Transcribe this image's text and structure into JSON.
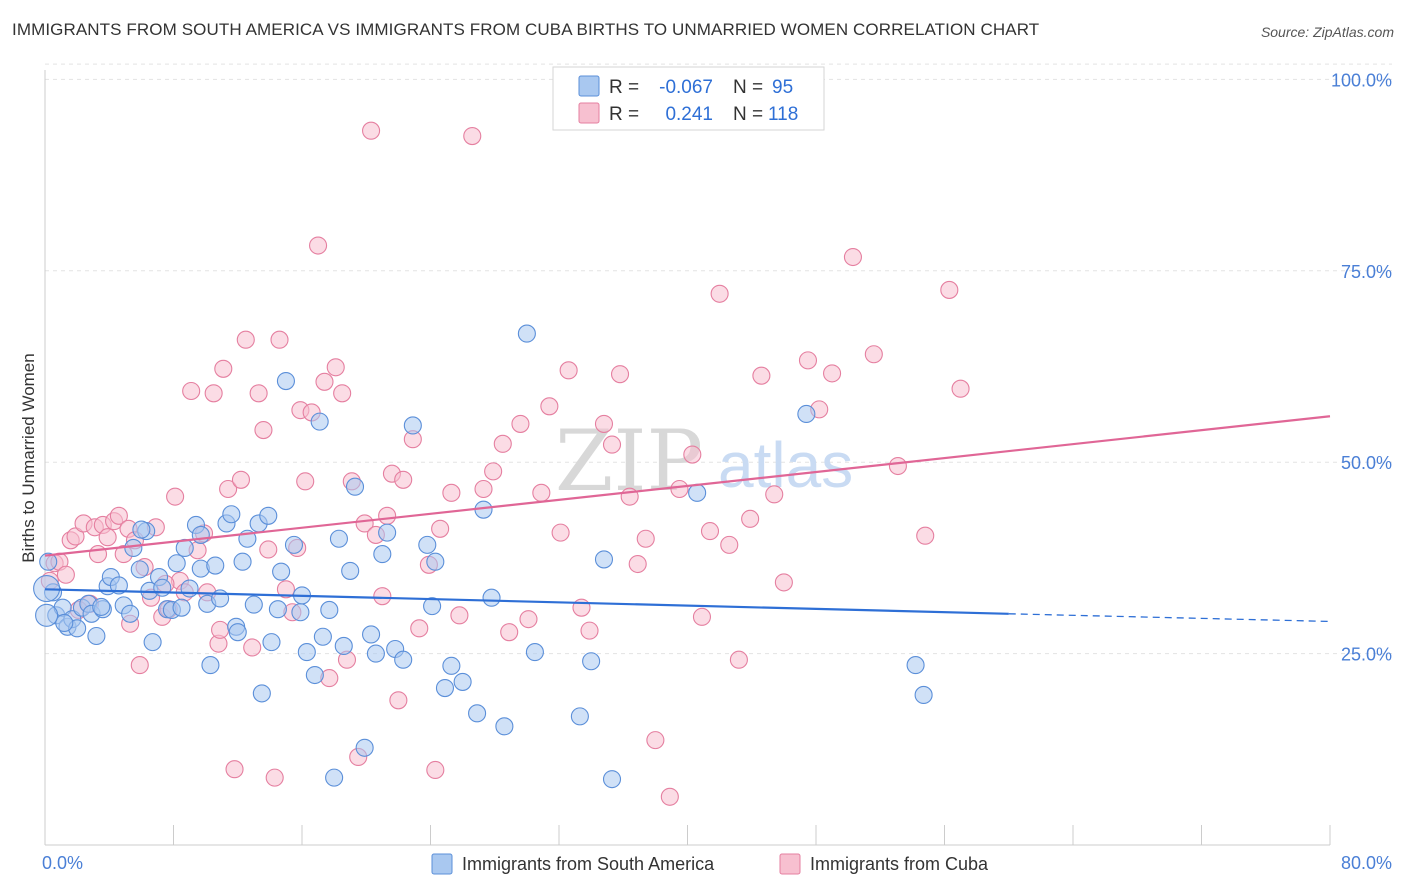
{
  "title": "IMMIGRANTS FROM SOUTH AMERICA VS IMMIGRANTS FROM CUBA BIRTHS TO UNMARRIED WOMEN CORRELATION CHART",
  "source": "Source: ZipAtlas.com",
  "watermark": {
    "part1": "ZIP",
    "part2": "atlas"
  },
  "legend": {
    "rows": [
      {
        "r_label": "R =",
        "r_value": "-0.067",
        "n_label": "N =",
        "n_value": "95",
        "color": "#a9c8f0",
        "stroke": "#5b8fd9"
      },
      {
        "r_label": "R =",
        "r_value": "0.241",
        "n_label": "N =",
        "n_value": "118",
        "color": "#f7c0d0",
        "stroke": "#e57fa0"
      }
    ]
  },
  "bottom_legend": [
    "Immigrants from South America",
    "Immigrants from Cuba"
  ],
  "chart_data": {
    "type": "scatter",
    "title": "IMMIGRANTS FROM SOUTH AMERICA VS IMMIGRANTS FROM CUBA BIRTHS TO UNMARRIED WOMEN CORRELATION CHART",
    "xlabel": "",
    "ylabel": "Births to Unmarried Women",
    "xlim": [
      0,
      80
    ],
    "ylim": [
      0,
      102
    ],
    "x_tick_labels": [
      "0.0%",
      "80.0%"
    ],
    "y_ticks": [
      25,
      50,
      75,
      100
    ],
    "y_tick_labels": [
      "25.0%",
      "50.0%",
      "75.0%",
      "100.0%"
    ],
    "grid": true,
    "series": [
      {
        "name": "Immigrants from South America",
        "color": "#5b8fd9",
        "fill": "#a9c8f0",
        "trend": {
          "x0": 0,
          "y0": 33.4,
          "x1": 60,
          "y1": 30.2,
          "dash_to_x": 80,
          "dash_to_y": 29.2,
          "line": "#2e6fd6"
        },
        "points": [
          [
            0.2,
            37
          ],
          [
            0.5,
            33
          ],
          [
            0.7,
            30
          ],
          [
            1.1,
            31
          ],
          [
            1.4,
            28.5
          ],
          [
            1.7,
            29.5
          ],
          [
            2.0,
            28.3
          ],
          [
            2.3,
            31
          ],
          [
            2.7,
            31.5
          ],
          [
            2.9,
            30.2
          ],
          [
            3.2,
            27.3
          ],
          [
            3.6,
            30.8
          ],
          [
            3.9,
            33.8
          ],
          [
            4.1,
            35
          ],
          [
            4.6,
            33.9
          ],
          [
            4.9,
            31.3
          ],
          [
            5.3,
            30.2
          ],
          [
            5.5,
            38.8
          ],
          [
            5.9,
            36
          ],
          [
            6.3,
            41
          ],
          [
            6.5,
            33.2
          ],
          [
            6.7,
            26.5
          ],
          [
            7.1,
            35
          ],
          [
            7.3,
            33.6
          ],
          [
            7.6,
            30.8
          ],
          [
            7.9,
            30.7
          ],
          [
            8.2,
            36.8
          ],
          [
            8.5,
            31
          ],
          [
            8.7,
            38.8
          ],
          [
            9.0,
            33.5
          ],
          [
            9.4,
            41.8
          ],
          [
            9.7,
            36.1
          ],
          [
            10.1,
            31.5
          ],
          [
            10.3,
            23.5
          ],
          [
            10.6,
            36.5
          ],
          [
            10.9,
            32.2
          ],
          [
            11.3,
            42
          ],
          [
            11.6,
            43.2
          ],
          [
            11.9,
            28.5
          ],
          [
            12.3,
            37
          ],
          [
            12.6,
            40
          ],
          [
            13.0,
            31.4
          ],
          [
            13.3,
            42
          ],
          [
            13.5,
            19.8
          ],
          [
            13.9,
            43
          ],
          [
            14.1,
            26.5
          ],
          [
            14.5,
            30.8
          ],
          [
            14.7,
            35.7
          ],
          [
            15.0,
            60.6
          ],
          [
            15.5,
            39.2
          ],
          [
            15.9,
            30.4
          ],
          [
            16.3,
            25.2
          ],
          [
            16.8,
            22.2
          ],
          [
            17.1,
            55.3
          ],
          [
            17.3,
            27.2
          ],
          [
            17.7,
            30.7
          ],
          [
            18.0,
            8.8
          ],
          [
            18.3,
            40
          ],
          [
            18.6,
            26
          ],
          [
            19.0,
            35.8
          ],
          [
            19.3,
            46.8
          ],
          [
            19.9,
            12.7
          ],
          [
            20.3,
            27.5
          ],
          [
            20.6,
            25
          ],
          [
            21.0,
            38
          ],
          [
            21.3,
            40.8
          ],
          [
            21.8,
            25.6
          ],
          [
            22.3,
            24.2
          ],
          [
            22.9,
            54.8
          ],
          [
            23.8,
            39.2
          ],
          [
            24.1,
            31.2
          ],
          [
            24.3,
            37
          ],
          [
            24.9,
            20.5
          ],
          [
            25.3,
            23.4
          ],
          [
            26.0,
            21.3
          ],
          [
            26.9,
            17.2
          ],
          [
            27.3,
            43.8
          ],
          [
            27.8,
            32.3
          ],
          [
            28.6,
            15.5
          ],
          [
            30.0,
            66.8
          ],
          [
            30.5,
            25.2
          ],
          [
            33.3,
            16.8
          ],
          [
            34.0,
            24
          ],
          [
            34.8,
            37.3
          ],
          [
            35.3,
            8.6
          ],
          [
            40.6,
            46
          ],
          [
            47.4,
            56.3
          ],
          [
            54.2,
            23.5
          ],
          [
            54.7,
            19.6
          ],
          [
            9.7,
            40.5
          ],
          [
            6.0,
            41.2
          ],
          [
            3.5,
            31.1
          ],
          [
            12.0,
            27.8
          ],
          [
            16.0,
            32.6
          ],
          [
            1.2,
            29.0
          ]
        ]
      },
      {
        "name": "Immigrants from Cuba",
        "color": "#e57fa0",
        "fill": "#f7c0d0",
        "trend": {
          "x0": 0,
          "y0": 37.8,
          "x1": 80,
          "y1": 56.0,
          "line": "#e06696"
        },
        "points": [
          [
            0.3,
            34.5
          ],
          [
            0.6,
            36.8
          ],
          [
            0.9,
            37
          ],
          [
            1.3,
            35.3
          ],
          [
            1.6,
            39.8
          ],
          [
            1.9,
            40.3
          ],
          [
            2.4,
            42
          ],
          [
            2.8,
            31.5
          ],
          [
            3.1,
            41.5
          ],
          [
            3.3,
            38
          ],
          [
            3.6,
            41.8
          ],
          [
            3.9,
            40.2
          ],
          [
            4.3,
            42.3
          ],
          [
            4.6,
            43
          ],
          [
            4.9,
            38
          ],
          [
            5.2,
            41.3
          ],
          [
            5.6,
            39.8
          ],
          [
            5.9,
            23.5
          ],
          [
            6.2,
            36.3
          ],
          [
            6.6,
            32.3
          ],
          [
            6.9,
            41.5
          ],
          [
            7.3,
            29.8
          ],
          [
            7.7,
            30.8
          ],
          [
            8.1,
            45.5
          ],
          [
            8.4,
            34.5
          ],
          [
            8.7,
            33
          ],
          [
            9.1,
            59.3
          ],
          [
            9.5,
            38.5
          ],
          [
            9.9,
            40.7
          ],
          [
            10.1,
            33
          ],
          [
            10.5,
            59
          ],
          [
            10.8,
            26.3
          ],
          [
            11.1,
            62.2
          ],
          [
            11.4,
            46.5
          ],
          [
            11.8,
            9.9
          ],
          [
            12.2,
            47.7
          ],
          [
            12.5,
            66
          ],
          [
            12.9,
            25.8
          ],
          [
            13.3,
            59
          ],
          [
            13.6,
            54.2
          ],
          [
            13.9,
            38.6
          ],
          [
            14.3,
            8.8
          ],
          [
            14.6,
            66
          ],
          [
            15.0,
            33.4
          ],
          [
            15.4,
            30.4
          ],
          [
            15.9,
            56.8
          ],
          [
            16.2,
            47.5
          ],
          [
            16.6,
            56.5
          ],
          [
            17.0,
            78.3
          ],
          [
            17.4,
            60.5
          ],
          [
            17.7,
            21.8
          ],
          [
            18.1,
            62.4
          ],
          [
            18.5,
            59
          ],
          [
            18.8,
            24.2
          ],
          [
            19.1,
            47.5
          ],
          [
            19.5,
            11.5
          ],
          [
            19.9,
            42
          ],
          [
            20.3,
            93.3
          ],
          [
            20.6,
            40.5
          ],
          [
            21.0,
            32.5
          ],
          [
            21.3,
            43
          ],
          [
            21.6,
            48.5
          ],
          [
            22.0,
            18.9
          ],
          [
            22.3,
            47.7
          ],
          [
            22.9,
            53
          ],
          [
            23.3,
            28.3
          ],
          [
            23.9,
            36.6
          ],
          [
            24.3,
            9.8
          ],
          [
            24.6,
            41.3
          ],
          [
            25.3,
            46
          ],
          [
            25.8,
            30
          ],
          [
            26.6,
            92.6
          ],
          [
            27.3,
            46.5
          ],
          [
            27.9,
            48.8
          ],
          [
            28.5,
            52.4
          ],
          [
            28.9,
            27.8
          ],
          [
            29.6,
            55
          ],
          [
            30.1,
            29.5
          ],
          [
            30.9,
            46
          ],
          [
            31.4,
            57.3
          ],
          [
            32.1,
            40.8
          ],
          [
            32.6,
            62
          ],
          [
            33.4,
            31
          ],
          [
            33.9,
            28
          ],
          [
            34.8,
            55
          ],
          [
            35.3,
            52.3
          ],
          [
            35.8,
            61.5
          ],
          [
            36.4,
            45.5
          ],
          [
            36.9,
            36.7
          ],
          [
            37.4,
            40
          ],
          [
            38.0,
            13.7
          ],
          [
            38.9,
            6.3
          ],
          [
            39.5,
            46.5
          ],
          [
            40.3,
            51
          ],
          [
            40.9,
            29.8
          ],
          [
            41.4,
            41
          ],
          [
            42.0,
            72
          ],
          [
            42.6,
            39.2
          ],
          [
            43.2,
            24.2
          ],
          [
            43.9,
            42.6
          ],
          [
            44.6,
            61.3
          ],
          [
            45.4,
            45.8
          ],
          [
            46.0,
            34.3
          ],
          [
            47.5,
            63.3
          ],
          [
            48.2,
            56.9
          ],
          [
            49.0,
            61.6
          ],
          [
            50.3,
            76.8
          ],
          [
            51.6,
            64.1
          ],
          [
            53.1,
            49.5
          ],
          [
            54.8,
            40.4
          ],
          [
            56.3,
            72.5
          ],
          [
            57.0,
            59.6
          ],
          [
            7.5,
            34.1
          ],
          [
            5.3,
            28.9
          ],
          [
            2.1,
            30.7
          ],
          [
            10.9,
            28.1
          ],
          [
            15.7,
            38.8
          ]
        ]
      }
    ]
  }
}
